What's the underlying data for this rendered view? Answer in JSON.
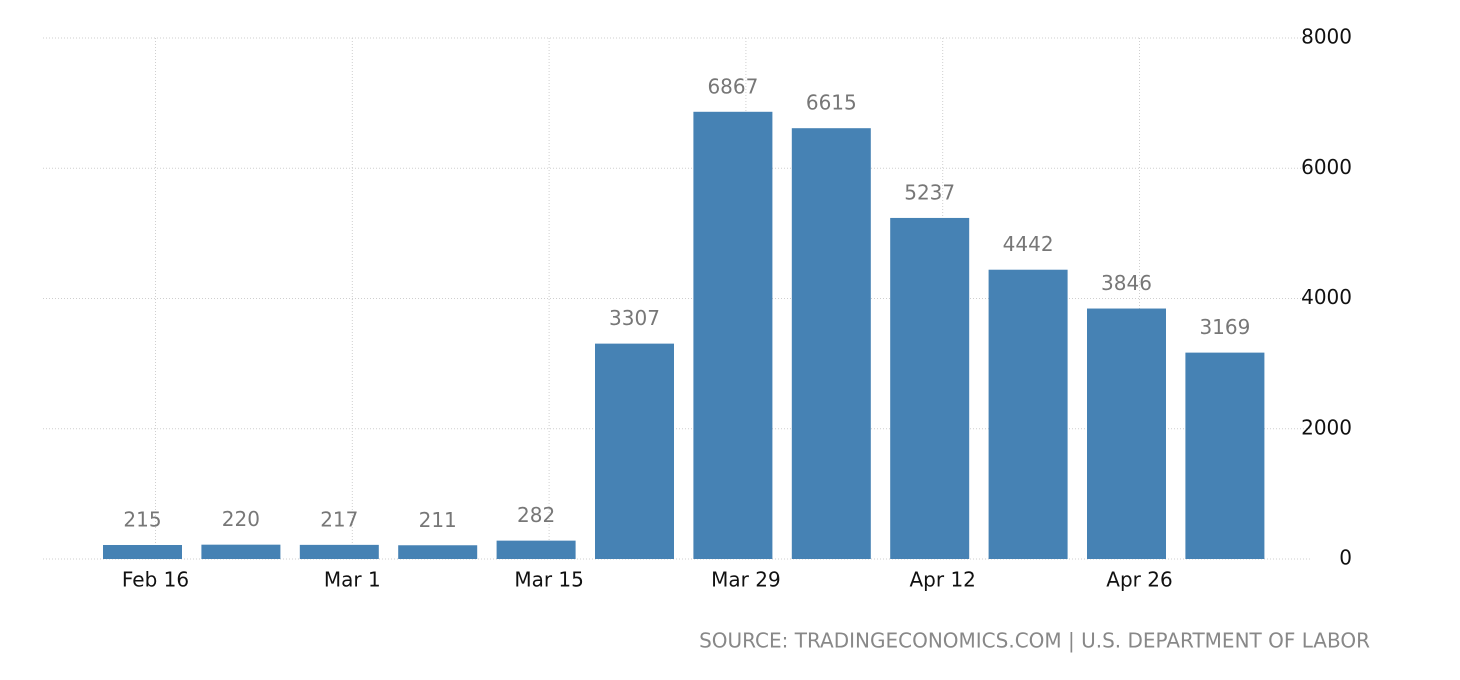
{
  "chart_data": {
    "type": "bar",
    "categories": [
      "Feb 16",
      null,
      "Mar 1",
      null,
      "Mar 15",
      null,
      "Mar 29",
      null,
      "Apr 12",
      null,
      "Apr 26",
      null
    ],
    "values": [
      215,
      220,
      217,
      211,
      282,
      3307,
      6867,
      6615,
      5237,
      4442,
      3846,
      3169
    ],
    "color": "#4682b4",
    "ylim": [
      0,
      8000
    ],
    "yticks": [
      0,
      2000,
      4000,
      6000,
      8000
    ],
    "grid": true,
    "source": "SOURCE: TRADINGECONOMICS.COM | U.S. DEPARTMENT OF LABOR"
  }
}
